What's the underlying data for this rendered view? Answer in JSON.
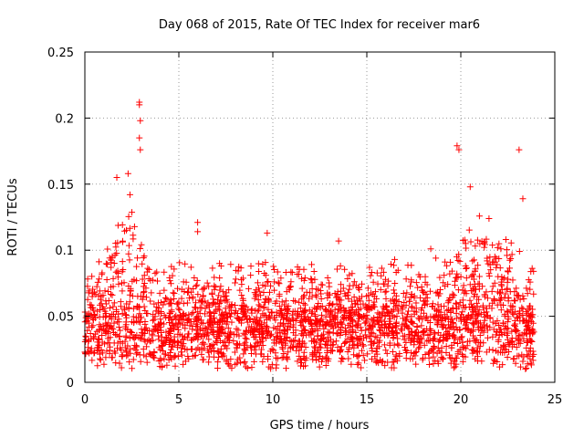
{
  "chart_data": {
    "type": "scatter",
    "title": "Day 068 of 2015, Rate Of TEC Index for receiver mar6",
    "xlabel": "GPS time / hours",
    "ylabel": "ROTI / TECUs",
    "xlim": [
      0,
      25
    ],
    "ylim": [
      0,
      0.25
    ],
    "x_ticks": [
      {
        "value": 0,
        "label": "0"
      },
      {
        "value": 5,
        "label": "5"
      },
      {
        "value": 10,
        "label": "10"
      },
      {
        "value": 15,
        "label": "15"
      },
      {
        "value": 20,
        "label": "20"
      },
      {
        "value": 25,
        "label": "25"
      }
    ],
    "y_ticks": [
      {
        "value": 0,
        "label": "0"
      },
      {
        "value": 0.05,
        "label": "0.05"
      },
      {
        "value": 0.1,
        "label": "0.1"
      },
      {
        "value": 0.15,
        "label": "0.15"
      },
      {
        "value": 0.2,
        "label": "0.2"
      },
      {
        "value": 0.25,
        "label": "0.25"
      }
    ],
    "grid": true,
    "marker": "+",
    "marker_color": "#ff0000",
    "series": [
      {
        "name": "ROTI",
        "x_range_hours": [
          0,
          23.9
        ],
        "baseline_band": [
          0.01,
          0.05
        ],
        "notable_points": [
          {
            "x": 1.7,
            "y": 0.155
          },
          {
            "x": 2.3,
            "y": 0.158
          },
          {
            "x": 2.4,
            "y": 0.142
          },
          {
            "x": 2.9,
            "y": 0.212
          },
          {
            "x": 2.9,
            "y": 0.21
          },
          {
            "x": 2.95,
            "y": 0.198
          },
          {
            "x": 2.9,
            "y": 0.185
          },
          {
            "x": 2.95,
            "y": 0.176
          },
          {
            "x": 6.0,
            "y": 0.121
          },
          {
            "x": 6.0,
            "y": 0.114
          },
          {
            "x": 9.7,
            "y": 0.113
          },
          {
            "x": 13.5,
            "y": 0.107
          },
          {
            "x": 18.4,
            "y": 0.101
          },
          {
            "x": 19.8,
            "y": 0.179
          },
          {
            "x": 19.9,
            "y": 0.176
          },
          {
            "x": 20.5,
            "y": 0.148
          },
          {
            "x": 21.5,
            "y": 0.124
          },
          {
            "x": 23.1,
            "y": 0.176
          },
          {
            "x": 23.3,
            "y": 0.139
          }
        ]
      }
    ]
  }
}
